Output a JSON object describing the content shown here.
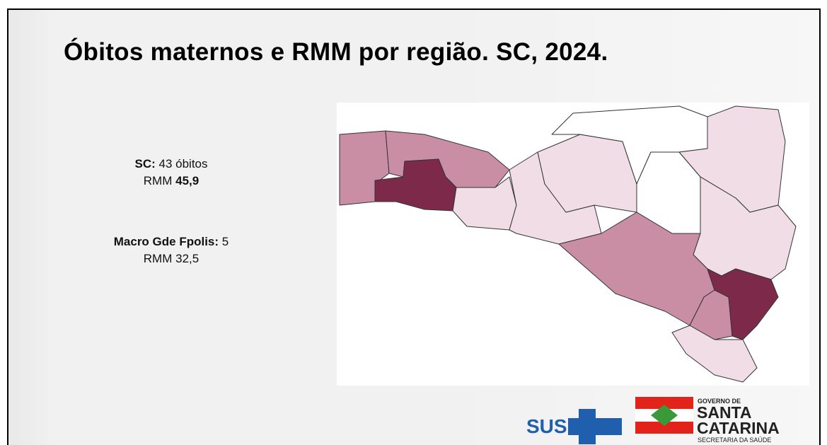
{
  "header": {
    "title": "Óbitos maternos e RMM por região. SC, 2024."
  },
  "summary": [
    {
      "label": "SC:",
      "value": "43 óbitos",
      "rate_label": "RMM",
      "rate": "45,9"
    },
    {
      "label": "Macro Gde Fpolis:",
      "value": "5",
      "rate_label": "RMM",
      "rate": "32,5"
    }
  ],
  "logos": {
    "sus": "SUS",
    "government": [
      "GOVERNO DE",
      "SANTA",
      "CATARINA",
      "SECRETARIA DA SAÚDE"
    ]
  }
}
